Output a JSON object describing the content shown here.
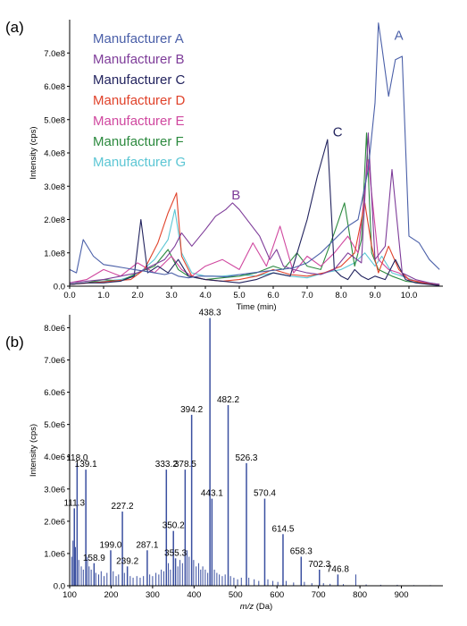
{
  "chart_data": [
    {
      "type": "line",
      "panel_label": "(a)",
      "xlabel": "Time (min)",
      "ylabel": "Intensity (cps)",
      "xlim": [
        0,
        11
      ],
      "ylim": [
        0,
        800000000.0
      ],
      "x_ticks": [
        "0.0",
        "1.0",
        "2.0",
        "3.0",
        "4.0",
        "5.0",
        "6.0",
        "7.0",
        "8.0",
        "9.0",
        "10.0"
      ],
      "y_ticks": [
        "0.0",
        "1.0e8",
        "2.0e8",
        "3.0e8",
        "4.0e8",
        "5.0e8",
        "6.0e8",
        "7.0e8"
      ],
      "annotations": [
        {
          "text": "A",
          "x": 9.7,
          "y": 740000000.0,
          "color": "#4a5fa8"
        },
        {
          "text": "B",
          "x": 4.9,
          "y": 260000000.0,
          "color": "#7e3c99"
        },
        {
          "text": "C",
          "x": 7.9,
          "y": 450000000.0,
          "color": "#22235e"
        }
      ],
      "series": [
        {
          "name": "Manufacturer  A",
          "color": "#4a5fa8",
          "x": [
            0,
            0.2,
            0.4,
            0.7,
            1.0,
            1.3,
            1.6,
            1.9,
            2.2,
            2.5,
            2.8,
            3.0,
            3.2,
            3.5,
            3.8,
            4.2,
            4.6,
            5.0,
            5.4,
            5.8,
            6.2,
            6.6,
            7.0,
            7.4,
            7.8,
            8.2,
            8.5,
            8.8,
            9.0,
            9.1,
            9.2,
            9.4,
            9.6,
            9.8,
            10.0,
            10.3,
            10.6,
            10.9
          ],
          "y": [
            50000000.0,
            40000000.0,
            140000000.0,
            90000000.0,
            65000000.0,
            60000000.0,
            55000000.0,
            50000000.0,
            45000000.0,
            40000000.0,
            35000000.0,
            40000000.0,
            30000000.0,
            25000000.0,
            30000000.0,
            30000000.0,
            28000000.0,
            35000000.0,
            40000000.0,
            45000000.0,
            50000000.0,
            55000000.0,
            70000000.0,
            100000000.0,
            140000000.0,
            180000000.0,
            200000000.0,
            350000000.0,
            550000000.0,
            790000000.0,
            720000000.0,
            570000000.0,
            680000000.0,
            690000000.0,
            150000000.0,
            130000000.0,
            80000000.0,
            50000000.0
          ]
        },
        {
          "name": "Manufacturer  B",
          "color": "#7e3c99",
          "x": [
            0,
            0.5,
            1.0,
            1.5,
            2.0,
            2.4,
            2.8,
            3.1,
            3.3,
            3.6,
            4.0,
            4.3,
            4.6,
            4.8,
            5.0,
            5.3,
            5.6,
            5.9,
            6.1,
            6.3,
            6.6,
            7.0,
            7.4,
            7.8,
            8.2,
            8.6,
            8.8,
            9.0,
            9.3,
            9.5,
            9.8,
            10.2,
            10.6,
            10.9
          ],
          "y": [
            10000000.0,
            15000000.0,
            20000000.0,
            30000000.0,
            40000000.0,
            60000000.0,
            80000000.0,
            120000000.0,
            160000000.0,
            120000000.0,
            170000000.0,
            210000000.0,
            230000000.0,
            250000000.0,
            230000000.0,
            190000000.0,
            150000000.0,
            80000000.0,
            110000000.0,
            60000000.0,
            50000000.0,
            40000000.0,
            35000000.0,
            50000000.0,
            100000000.0,
            70000000.0,
            460000000.0,
            80000000.0,
            120000000.0,
            350000000.0,
            40000000.0,
            20000000.0,
            10000000.0,
            5000000.0
          ]
        },
        {
          "name": "Manufacturer  C",
          "color": "#22235e",
          "x": [
            0,
            0.5,
            1.0,
            1.5,
            1.9,
            2.1,
            2.3,
            2.6,
            2.9,
            3.2,
            3.5,
            4.0,
            4.5,
            5.0,
            5.5,
            6.0,
            6.5,
            7.0,
            7.3,
            7.6,
            7.8,
            8.0,
            8.2,
            8.4,
            8.6,
            8.8,
            9.0,
            9.3,
            9.6,
            9.9,
            10.2,
            10.6,
            10.9
          ],
          "y": [
            5000000.0,
            10000000.0,
            10000000.0,
            15000000.0,
            30000000.0,
            200000000.0,
            40000000.0,
            60000000.0,
            40000000.0,
            80000000.0,
            30000000.0,
            20000000.0,
            15000000.0,
            10000000.0,
            20000000.0,
            40000000.0,
            30000000.0,
            200000000.0,
            330000000.0,
            440000000.0,
            50000000.0,
            30000000.0,
            20000000.0,
            50000000.0,
            30000000.0,
            20000000.0,
            30000000.0,
            20000000.0,
            80000000.0,
            20000000.0,
            10000000.0,
            5000000.0,
            2000000.0
          ]
        },
        {
          "name": "Manufacturer  D",
          "color": "#e0422a",
          "x": [
            0,
            0.6,
            1.2,
            1.8,
            2.2,
            2.6,
            2.9,
            3.15,
            3.3,
            3.6,
            4.0,
            4.5,
            5.0,
            5.5,
            6.0,
            6.5,
            7.0,
            7.5,
            8.0,
            8.4,
            8.7,
            8.9,
            9.1,
            9.4,
            9.7,
            10.0,
            10.4,
            10.9
          ],
          "y": [
            5000000.0,
            10000000.0,
            15000000.0,
            20000000.0,
            50000000.0,
            130000000.0,
            220000000.0,
            280000000.0,
            90000000.0,
            30000000.0,
            20000000.0,
            15000000.0,
            20000000.0,
            30000000.0,
            50000000.0,
            35000000.0,
            30000000.0,
            40000000.0,
            60000000.0,
            100000000.0,
            250000000.0,
            120000000.0,
            40000000.0,
            120000000.0,
            50000000.0,
            20000000.0,
            10000000.0,
            5000000.0
          ]
        },
        {
          "name": "Manufacturer  E",
          "color": "#d0489f",
          "x": [
            0,
            0.5,
            1.0,
            1.5,
            2.0,
            2.5,
            3.0,
            3.3,
            3.6,
            4.0,
            4.5,
            5.0,
            5.4,
            5.8,
            6.2,
            6.6,
            7.0,
            7.4,
            7.8,
            8.2,
            8.5,
            8.8,
            9.1,
            9.4,
            9.7,
            10.0,
            10.5,
            10.9
          ],
          "y": [
            10000000.0,
            20000000.0,
            50000000.0,
            30000000.0,
            70000000.0,
            40000000.0,
            90000000.0,
            50000000.0,
            30000000.0,
            60000000.0,
            80000000.0,
            50000000.0,
            130000000.0,
            60000000.0,
            180000000.0,
            40000000.0,
            90000000.0,
            60000000.0,
            100000000.0,
            150000000.0,
            100000000.0,
            380000000.0,
            80000000.0,
            50000000.0,
            40000000.0,
            20000000.0,
            10000000.0,
            5000000.0
          ]
        },
        {
          "name": "Manufacturer  F",
          "color": "#2b8a3e",
          "x": [
            0,
            0.5,
            1.0,
            1.5,
            2.0,
            2.5,
            2.9,
            3.2,
            3.5,
            4.0,
            4.5,
            5.0,
            5.5,
            6.0,
            6.3,
            6.7,
            7.0,
            7.4,
            7.8,
            8.1,
            8.4,
            8.6,
            8.75,
            8.9,
            9.1,
            9.5,
            9.9,
            10.3,
            10.9
          ],
          "y": [
            5000000.0,
            10000000.0,
            20000000.0,
            15000000.0,
            40000000.0,
            60000000.0,
            110000000.0,
            50000000.0,
            30000000.0,
            20000000.0,
            25000000.0,
            30000000.0,
            40000000.0,
            60000000.0,
            50000000.0,
            100000000.0,
            60000000.0,
            50000000.0,
            160000000.0,
            250000000.0,
            60000000.0,
            140000000.0,
            460000000.0,
            100000000.0,
            50000000.0,
            30000000.0,
            15000000.0,
            10000000.0,
            5000000.0
          ]
        },
        {
          "name": "Manufacturer  G",
          "color": "#5cc6d4",
          "x": [
            0,
            0.5,
            1.0,
            1.5,
            2.0,
            2.5,
            2.9,
            3.1,
            3.3,
            3.6,
            4.0,
            4.5,
            5.0,
            5.5,
            6.0,
            6.5,
            7.0,
            7.5,
            8.0,
            8.4,
            8.7,
            9.0,
            9.2,
            9.5,
            9.8,
            10.2,
            10.6,
            10.9
          ],
          "y": [
            5000000.0,
            10000000.0,
            15000000.0,
            20000000.0,
            35000000.0,
            80000000.0,
            140000000.0,
            230000000.0,
            100000000.0,
            40000000.0,
            30000000.0,
            30000000.0,
            35000000.0,
            30000000.0,
            40000000.0,
            30000000.0,
            25000000.0,
            40000000.0,
            50000000.0,
            70000000.0,
            100000000.0,
            60000000.0,
            90000000.0,
            40000000.0,
            30000000.0,
            15000000.0,
            10000000.0,
            5000000.0
          ]
        }
      ]
    },
    {
      "type": "bar",
      "panel_label": "(b)",
      "xlabel_italic": "m/z",
      "xlabel_rest": " (Da)",
      "ylabel": "Intensity (cps)",
      "xlim": [
        100,
        1000
      ],
      "ylim": [
        0,
        8400000.0
      ],
      "x_ticks": [
        "100",
        "200",
        "300",
        "400",
        "500",
        "600",
        "700",
        "800",
        "900"
      ],
      "y_ticks": [
        "0.0",
        "1.0e6",
        "2.0e6",
        "3.0e6",
        "4.0e6",
        "5.0e6",
        "6.0e6",
        "7.0e6",
        "8.0e6"
      ],
      "color": "#3a4fa0",
      "labeled_peaks": [
        {
          "label": "438.3",
          "x": 438.3,
          "y": 8300000.0
        },
        {
          "label": "482.2",
          "x": 482.2,
          "y": 5600000.0
        },
        {
          "label": "394.2",
          "x": 394.2,
          "y": 5300000.0
        },
        {
          "label": "526.3",
          "x": 526.3,
          "y": 3800000.0
        },
        {
          "label": "118.0",
          "x": 118.0,
          "y": 3800000.0
        },
        {
          "label": "139.1",
          "x": 139.1,
          "y": 3600000.0
        },
        {
          "label": "333.2",
          "x": 333.2,
          "y": 3600000.0
        },
        {
          "label": "378.5",
          "x": 378.5,
          "y": 3600000.0
        },
        {
          "label": "570.4",
          "x": 570.4,
          "y": 2700000.0
        },
        {
          "label": "443.1",
          "x": 443.1,
          "y": 2700000.0
        },
        {
          "label": "227.2",
          "x": 227.2,
          "y": 2300000.0
        },
        {
          "label": "111.3",
          "x": 111.3,
          "y": 2400000.0
        },
        {
          "label": "350.2",
          "x": 350.2,
          "y": 1700000.0
        },
        {
          "label": "614.5",
          "x": 614.5,
          "y": 1600000.0
        },
        {
          "label": "287.1",
          "x": 287.1,
          "y": 1100000.0
        },
        {
          "label": "199.0",
          "x": 199.0,
          "y": 1100000.0
        },
        {
          "label": "355.3",
          "x": 355.3,
          "y": 850000.0
        },
        {
          "label": "158.9",
          "x": 158.9,
          "y": 700000.0
        },
        {
          "label": "239.2",
          "x": 239.2,
          "y": 600000.0
        },
        {
          "label": "658.3",
          "x": 658.3,
          "y": 900000.0
        },
        {
          "label": "702.3",
          "x": 702.3,
          "y": 500000.0
        },
        {
          "label": "746.8",
          "x": 746.8,
          "y": 350000.0
        }
      ],
      "minor_peaks": [
        {
          "x": 105,
          "y": 900000.0
        },
        {
          "x": 108,
          "y": 1400000.0
        },
        {
          "x": 114,
          "y": 1200000.0
        },
        {
          "x": 122,
          "y": 800000.0
        },
        {
          "x": 128,
          "y": 600000.0
        },
        {
          "x": 133,
          "y": 500000.0
        },
        {
          "x": 143,
          "y": 900000.0
        },
        {
          "x": 147,
          "y": 600000.0
        },
        {
          "x": 152,
          "y": 500000.0
        },
        {
          "x": 163,
          "y": 400000.0
        },
        {
          "x": 170,
          "y": 350000.0
        },
        {
          "x": 176,
          "y": 450000.0
        },
        {
          "x": 183,
          "y": 300000.0
        },
        {
          "x": 190,
          "y": 400000.0
        },
        {
          "x": 205,
          "y": 450000.0
        },
        {
          "x": 212,
          "y": 300000.0
        },
        {
          "x": 218,
          "y": 350000.0
        },
        {
          "x": 232,
          "y": 400000.0
        },
        {
          "x": 246,
          "y": 300000.0
        },
        {
          "x": 253,
          "y": 250000.0
        },
        {
          "x": 262,
          "y": 300000.0
        },
        {
          "x": 270,
          "y": 250000.0
        },
        {
          "x": 278,
          "y": 300000.0
        },
        {
          "x": 293,
          "y": 350000.0
        },
        {
          "x": 300,
          "y": 300000.0
        },
        {
          "x": 308,
          "y": 400000.0
        },
        {
          "x": 315,
          "y": 350000.0
        },
        {
          "x": 321,
          "y": 500000.0
        },
        {
          "x": 327,
          "y": 450000.0
        },
        {
          "x": 338,
          "y": 700000.0
        },
        {
          "x": 343,
          "y": 500000.0
        },
        {
          "x": 361,
          "y": 600000.0
        },
        {
          "x": 366,
          "y": 800000.0
        },
        {
          "x": 372,
          "y": 700000.0
        },
        {
          "x": 383,
          "y": 1100000.0
        },
        {
          "x": 388,
          "y": 900000.0
        },
        {
          "x": 399,
          "y": 800000.0
        },
        {
          "x": 405,
          "y": 600000.0
        },
        {
          "x": 411,
          "y": 700000.0
        },
        {
          "x": 416,
          "y": 500000.0
        },
        {
          "x": 421,
          "y": 600000.0
        },
        {
          "x": 427,
          "y": 500000.0
        },
        {
          "x": 433,
          "y": 400000.0
        },
        {
          "x": 449,
          "y": 500000.0
        },
        {
          "x": 455,
          "y": 400000.0
        },
        {
          "x": 461,
          "y": 350000.0
        },
        {
          "x": 468,
          "y": 300000.0
        },
        {
          "x": 475,
          "y": 350000.0
        },
        {
          "x": 488,
          "y": 300000.0
        },
        {
          "x": 496,
          "y": 250000.0
        },
        {
          "x": 505,
          "y": 200000.0
        },
        {
          "x": 514,
          "y": 250000.0
        },
        {
          "x": 532,
          "y": 250000.0
        },
        {
          "x": 545,
          "y": 200000.0
        },
        {
          "x": 556,
          "y": 150000.0
        },
        {
          "x": 578,
          "y": 200000.0
        },
        {
          "x": 590,
          "y": 150000.0
        },
        {
          "x": 602,
          "y": 120000.0
        },
        {
          "x": 622,
          "y": 150000.0
        },
        {
          "x": 640,
          "y": 100000.0
        },
        {
          "x": 666,
          "y": 120000.0
        },
        {
          "x": 684,
          "y": 80000.0
        },
        {
          "x": 712,
          "y": 80000.0
        },
        {
          "x": 728,
          "y": 60000.0
        },
        {
          "x": 760,
          "y": 50000.0
        },
        {
          "x": 790,
          "y": 350000.0
        },
        {
          "x": 815,
          "y": 40000.0
        },
        {
          "x": 850,
          "y": 30000.0
        },
        {
          "x": 890,
          "y": 30000.0
        },
        {
          "x": 930,
          "y": 20000.0
        },
        {
          "x": 970,
          "y": 20000.0
        }
      ]
    }
  ]
}
